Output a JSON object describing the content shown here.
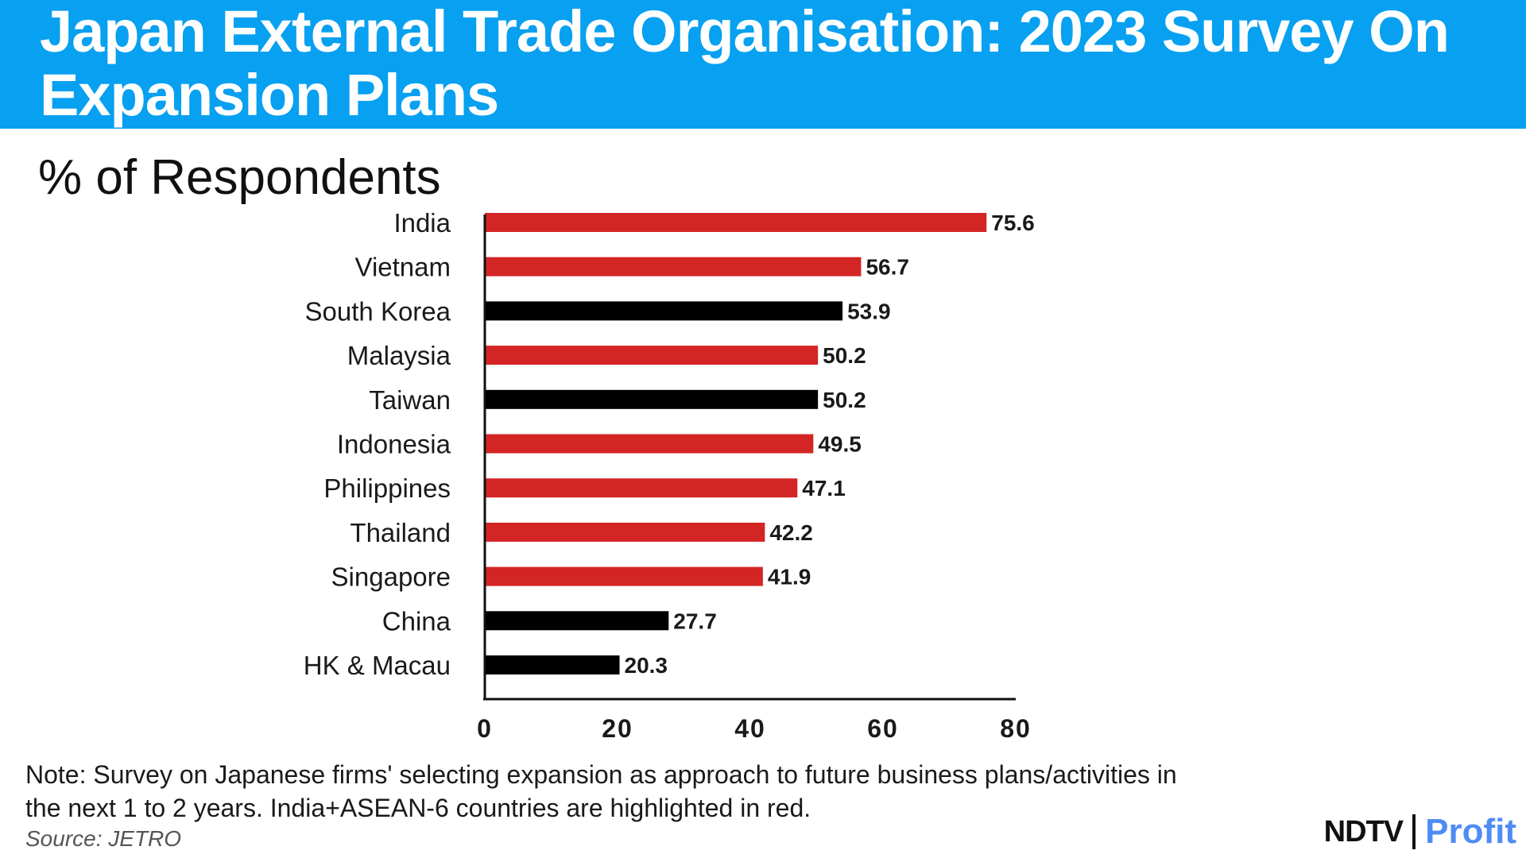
{
  "header": {
    "title": "Japan External Trade Organisation: 2023 Survey On Expansion Plans"
  },
  "subtitle": "% of Respondents",
  "chart_data": {
    "type": "bar",
    "orientation": "horizontal",
    "categories": [
      "India",
      "Vietnam",
      "South Korea",
      "Malaysia",
      "Taiwan",
      "Indonesia",
      "Philippines",
      "Thailand",
      "Singapore",
      "China",
      "HK & Macau"
    ],
    "values": [
      75.6,
      56.7,
      53.9,
      50.2,
      50.2,
      49.5,
      47.1,
      42.2,
      41.9,
      27.7,
      20.3
    ],
    "value_labels": [
      "75.6",
      "56.7",
      "53.9",
      "50.2",
      "50.2",
      "49.5",
      "47.1",
      "42.2",
      "41.9",
      "27.7",
      "20.3"
    ],
    "highlight": [
      true,
      true,
      false,
      true,
      false,
      true,
      true,
      true,
      true,
      false,
      false
    ],
    "xlim": [
      0,
      80
    ],
    "xticks": [
      "0",
      "20",
      "40",
      "60",
      "80"
    ],
    "grid": false,
    "colors": {
      "highlight": "#d42525",
      "other": "#000000"
    }
  },
  "footer": {
    "note": "Note: Survey on Japanese firms' selecting expansion as approach to future business plans/activities in the next 1 to 2 years. India+ASEAN-6 countries are highlighted in red.",
    "source": "Source: JETRO"
  },
  "brand": {
    "ndtv": "NDTV",
    "profit": "Profit"
  }
}
